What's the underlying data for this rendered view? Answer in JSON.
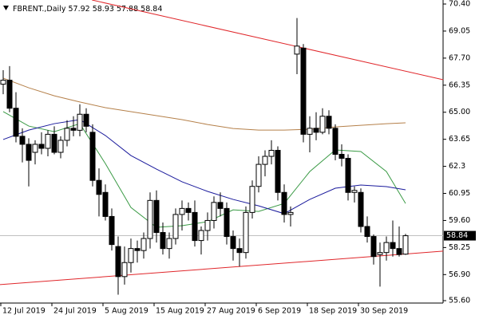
{
  "chart_data": {
    "type": "candlestick",
    "symbol": "FBRENT.,Daily",
    "categories": [
      "12 Jul 2019",
      null,
      null,
      null,
      null,
      null,
      null,
      null,
      "24 Jul 2019",
      null,
      null,
      null,
      null,
      null,
      null,
      null,
      "5 Aug 2019",
      null,
      null,
      null,
      null,
      null,
      null,
      null,
      "15 Aug 2019",
      null,
      null,
      null,
      null,
      null,
      null,
      null,
      "27 Aug 2019",
      null,
      null,
      null,
      null,
      null,
      null,
      null,
      "6 Sep 2019",
      null,
      null,
      null,
      null,
      null,
      null,
      null,
      "18 Sep 2019",
      null,
      null,
      null,
      null,
      null,
      null,
      null,
      "30 Sep 2019",
      null,
      null,
      null,
      null,
      null,
      null,
      null
    ],
    "open": [
      66.4,
      66.6,
      65.2,
      63.8,
      63.4,
      63.0,
      63.4,
      63.2,
      63.9,
      63.0,
      63.6,
      64.2,
      64.1,
      64.9,
      64.0,
      61.6,
      61.0,
      59.8,
      58.3,
      56.8,
      57.5,
      58.2,
      58.1,
      58.7,
      60.6,
      59.0,
      58.2,
      58.7,
      59.9,
      60.2,
      60.0,
      58.6,
      59.1,
      59.6,
      60.5,
      60.2,
      58.8,
      58.2,
      58.0,
      60.0,
      61.3,
      62.4,
      62.8,
      63.1,
      61.0,
      59.9,
      67.9,
      68.2,
      63.9,
      64.2,
      64.0,
      64.8,
      64.2,
      62.9,
      62.7,
      61.0,
      61.0,
      59.3,
      58.8,
      57.9,
      58.0,
      58.5,
      58.2,
      57.92
    ],
    "high": [
      67.1,
      67.3,
      66.0,
      64.2,
      63.7,
      63.6,
      64.0,
      64.1,
      64.3,
      63.8,
      64.6,
      64.8,
      65.4,
      65.2,
      64.4,
      62.2,
      61.4,
      60.2,
      58.8,
      58.3,
      58.7,
      58.6,
      59.0,
      61.0,
      61.1,
      59.5,
      59.0,
      60.2,
      60.6,
      60.5,
      60.6,
      59.3,
      60.0,
      60.8,
      61.0,
      60.5,
      59.1,
      58.7,
      60.3,
      61.6,
      62.8,
      63.1,
      63.6,
      63.3,
      61.4,
      60.3,
      69.7,
      68.4,
      64.8,
      65.0,
      65.2,
      65.1,
      64.4,
      63.4,
      62.9,
      61.3,
      61.2,
      59.8,
      58.9,
      58.5,
      58.8,
      59.6,
      59.3,
      58.93
    ],
    "low": [
      65.9,
      65.0,
      63.5,
      62.5,
      61.3,
      62.4,
      62.9,
      62.8,
      62.9,
      62.7,
      63.3,
      63.8,
      63.8,
      64.0,
      61.3,
      59.8,
      59.6,
      58.1,
      55.9,
      56.4,
      57.0,
      57.5,
      57.7,
      58.2,
      58.5,
      57.9,
      57.7,
      58.4,
      59.1,
      59.6,
      58.3,
      57.9,
      58.6,
      59.2,
      59.8,
      58.4,
      57.6,
      57.3,
      57.7,
      59.7,
      61.0,
      61.8,
      62.4,
      60.6,
      59.5,
      59.3,
      66.9,
      63.5,
      63.0,
      63.6,
      63.9,
      63.9,
      62.6,
      62.3,
      60.6,
      60.5,
      59.0,
      58.5,
      57.4,
      56.3,
      57.6,
      57.8,
      57.8,
      57.88
    ],
    "close": [
      66.6,
      65.2,
      63.8,
      63.4,
      62.6,
      63.4,
      63.2,
      63.9,
      63.0,
      63.6,
      64.2,
      64.1,
      64.9,
      64.3,
      61.6,
      60.9,
      59.8,
      58.4,
      56.8,
      57.5,
      58.2,
      58.1,
      58.7,
      60.6,
      59.0,
      58.2,
      58.7,
      59.9,
      60.2,
      60.0,
      58.6,
      59.1,
      59.6,
      60.5,
      60.2,
      58.8,
      58.2,
      58.0,
      60.0,
      61.3,
      62.4,
      62.8,
      63.1,
      61.0,
      59.9,
      60.0,
      68.3,
      63.9,
      64.2,
      64.0,
      64.8,
      64.2,
      62.9,
      62.7,
      61.0,
      61.1,
      59.3,
      58.8,
      57.8,
      58.0,
      58.5,
      58.2,
      57.9,
      58.84
    ],
    "moving_averages": [
      {
        "color": "#3a9a45",
        "x": [
          0,
          4,
          8,
          12,
          16,
          20,
          24,
          28,
          32,
          36,
          40,
          44,
          48,
          52,
          56,
          60,
          63
        ],
        "values": [
          65.03,
          64.31,
          64.03,
          64.43,
          62.44,
          60.25,
          59.26,
          59.34,
          59.54,
          60.13,
          60.05,
          60.45,
          62.04,
          63.12,
          63.04,
          62.04,
          60.45
        ]
      },
      {
        "color": "#1a1a9c",
        "x": [
          0,
          4,
          8,
          12,
          16,
          20,
          24,
          28,
          32,
          36,
          40,
          44,
          48,
          52,
          56,
          60,
          63
        ],
        "values": [
          63.64,
          64.11,
          64.43,
          64.63,
          63.84,
          62.84,
          62.16,
          61.53,
          61.05,
          60.65,
          60.33,
          59.94,
          60.65,
          61.21,
          61.37,
          61.29,
          61.13
        ]
      },
      {
        "color": "#b5804a",
        "x": [
          0,
          4,
          8,
          12,
          16,
          20,
          24,
          28,
          32,
          36,
          40,
          44,
          48,
          52,
          56,
          60,
          63
        ],
        "values": [
          66.7,
          66.22,
          65.82,
          65.51,
          65.23,
          65.03,
          64.83,
          64.63,
          64.39,
          64.19,
          64.11,
          64.11,
          64.15,
          64.27,
          64.35,
          64.43,
          64.47
        ]
      }
    ],
    "trendlines": [
      {
        "color": "#e0262a",
        "x": [
          -0.5,
          68.9
        ],
        "values": [
          56.4,
          58.07
        ]
      },
      {
        "color": "#e0262a",
        "x": [
          13.9,
          68.9
        ],
        "values": [
          70.6,
          66.62
        ]
      }
    ],
    "ylim": [
      55.48,
      70.6
    ],
    "yticks": [
      {
        "value": 70.4,
        "label": "70.40"
      },
      69.05,
      {
        "value": 67.7,
        "label": "67.70"
      },
      66.35,
      {
        "value": 65,
        "label": "65.00"
      },
      63.65,
      62.3,
      60.95,
      {
        "value": 59.6,
        "label": "59.60"
      },
      58.25,
      {
        "value": 56.9,
        "label": "56.90"
      },
      {
        "value": 55.6,
        "label": "55.60"
      }
    ]
  }
}
